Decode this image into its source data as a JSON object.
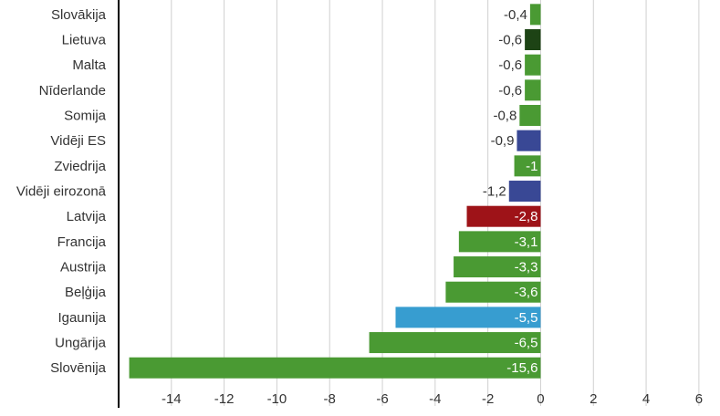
{
  "chart_data": {
    "type": "bar",
    "orientation": "horizontal",
    "categories": [
      "Slovākija",
      "Lietuva",
      "Malta",
      "Nīderlande",
      "Somija",
      "Vidēji ES",
      "Zviedrija",
      "Vidēji eirozonā",
      "Latvija",
      "Francija",
      "Austrija",
      "Beļģija",
      "Igaunija",
      "Ungārija",
      "Slovēnija"
    ],
    "values": [
      -0.4,
      -0.6,
      -0.6,
      -0.6,
      -0.8,
      -0.9,
      -1,
      -1.2,
      -2.8,
      -3.1,
      -3.3,
      -3.6,
      -5.5,
      -6.5,
      -15.6
    ],
    "value_labels": [
      "-0,4",
      "-0,6",
      "-0,6",
      "-0,6",
      "-0,8",
      "-0,9",
      "-1",
      "-1,2",
      "-2,8",
      "-3,1",
      "-3,3",
      "-3,6",
      "-5,5",
      "-6,5",
      "-15,6"
    ],
    "bar_colors": [
      "#4a9a33",
      "#1d4315",
      "#4a9a33",
      "#4a9a33",
      "#4a9a33",
      "#394895",
      "#4a9a33",
      "#394895",
      "#9e1318",
      "#4a9a33",
      "#4a9a33",
      "#4a9a33",
      "#379dd0",
      "#4a9a33",
      "#4a9a33"
    ],
    "x_ticks": [
      -14,
      -12,
      -10,
      -8,
      -6,
      -4,
      -2,
      0,
      2,
      4,
      6
    ],
    "x_tick_labels": [
      "-14",
      "-12",
      "-10",
      "-8",
      "-6",
      "-4",
      "-2",
      "0",
      "2",
      "4",
      "6"
    ],
    "xlim": [
      -16,
      6.8
    ],
    "grid": true,
    "title": "",
    "xlabel": "",
    "ylabel": "",
    "label_colors": {
      "on_bar": "#ffffff",
      "outside": "#333333",
      "category": "#333333",
      "tick": "#333333",
      "grid": "#d0d0d0",
      "axis": "#000000"
    }
  }
}
